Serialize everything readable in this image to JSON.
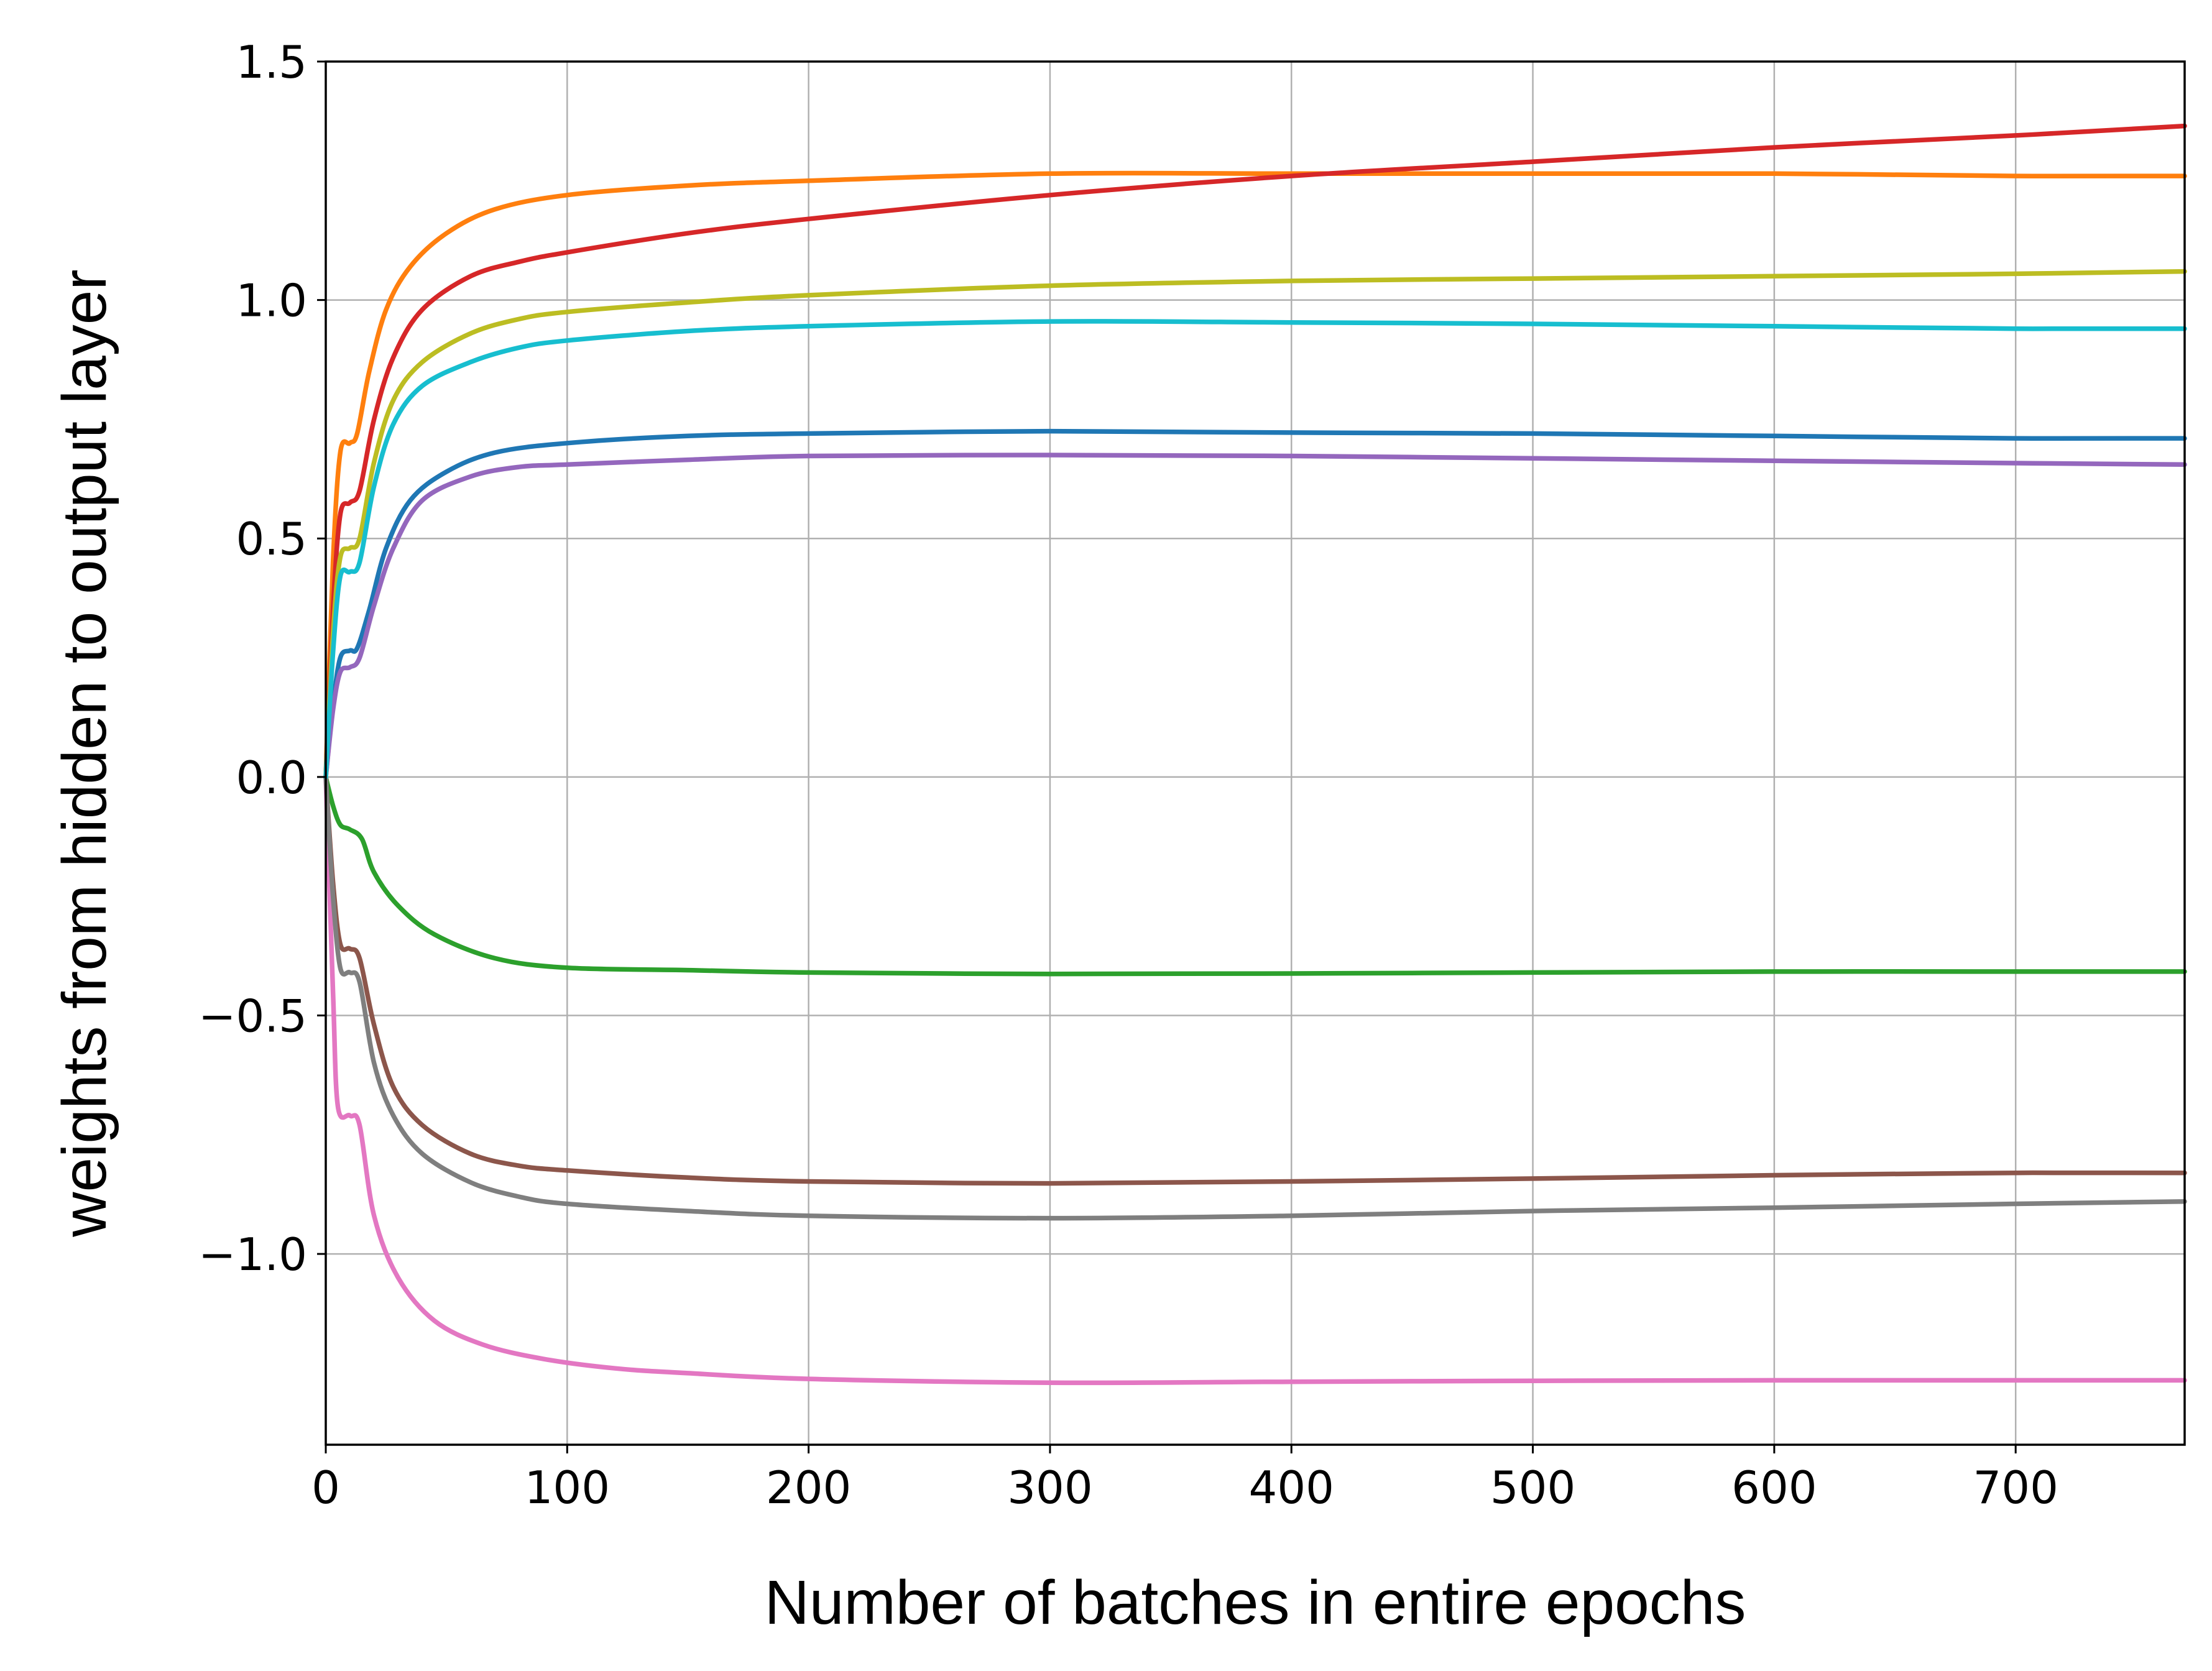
{
  "chart_data": {
    "type": "line",
    "title": "",
    "xlabel": "Number of batches in entire epochs",
    "ylabel": "weights from hidden to output layer",
    "xlim": [
      0,
      770
    ],
    "ylim": [
      -1.4,
      1.5
    ],
    "xticks": [
      0,
      100,
      200,
      300,
      400,
      500,
      600,
      700
    ],
    "yticks": [
      1.5,
      1.0,
      0.5,
      0.0,
      -0.5,
      -1.0
    ],
    "xtick_labels": [
      "0",
      "100",
      "200",
      "300",
      "400",
      "500",
      "600",
      "700"
    ],
    "ytick_labels": [
      "1.5",
      "1.0",
      "0.5",
      "0.0",
      "−0.5",
      "−1.0"
    ],
    "grid": true,
    "legend": "none",
    "series": [
      {
        "color": "#1f77b4",
        "points": [
          [
            0,
            0
          ],
          [
            3,
            0.15
          ],
          [
            6,
            0.25
          ],
          [
            10,
            0.265
          ],
          [
            13,
            0.27
          ],
          [
            18,
            0.35
          ],
          [
            25,
            0.48
          ],
          [
            35,
            0.58
          ],
          [
            50,
            0.64
          ],
          [
            70,
            0.68
          ],
          [
            100,
            0.7
          ],
          [
            150,
            0.715
          ],
          [
            200,
            0.72
          ],
          [
            300,
            0.725
          ],
          [
            400,
            0.722
          ],
          [
            500,
            0.72
          ],
          [
            600,
            0.715
          ],
          [
            700,
            0.71
          ],
          [
            770,
            0.71
          ]
        ]
      },
      {
        "color": "#ff7f0e",
        "points": [
          [
            0,
            0
          ],
          [
            3,
            0.45
          ],
          [
            6,
            0.68
          ],
          [
            10,
            0.7
          ],
          [
            13,
            0.72
          ],
          [
            18,
            0.85
          ],
          [
            25,
            0.98
          ],
          [
            35,
            1.07
          ],
          [
            50,
            1.14
          ],
          [
            70,
            1.19
          ],
          [
            100,
            1.22
          ],
          [
            150,
            1.24
          ],
          [
            200,
            1.25
          ],
          [
            300,
            1.265
          ],
          [
            400,
            1.265
          ],
          [
            500,
            1.265
          ],
          [
            600,
            1.265
          ],
          [
            700,
            1.26
          ],
          [
            770,
            1.26
          ]
        ]
      },
      {
        "color": "#2ca02c",
        "points": [
          [
            0,
            0
          ],
          [
            3,
            -0.06
          ],
          [
            6,
            -0.1
          ],
          [
            10,
            -0.11
          ],
          [
            15,
            -0.13
          ],
          [
            20,
            -0.2
          ],
          [
            30,
            -0.27
          ],
          [
            45,
            -0.33
          ],
          [
            70,
            -0.38
          ],
          [
            100,
            -0.4
          ],
          [
            150,
            -0.405
          ],
          [
            200,
            -0.41
          ],
          [
            300,
            -0.413
          ],
          [
            400,
            -0.412
          ],
          [
            500,
            -0.41
          ],
          [
            600,
            -0.408
          ],
          [
            700,
            -0.408
          ],
          [
            770,
            -0.408
          ]
        ]
      },
      {
        "color": "#d62728",
        "points": [
          [
            0,
            0
          ],
          [
            3,
            0.35
          ],
          [
            6,
            0.55
          ],
          [
            10,
            0.575
          ],
          [
            14,
            0.6
          ],
          [
            20,
            0.75
          ],
          [
            28,
            0.88
          ],
          [
            40,
            0.98
          ],
          [
            60,
            1.05
          ],
          [
            80,
            1.08
          ],
          [
            100,
            1.1
          ],
          [
            150,
            1.14
          ],
          [
            200,
            1.17
          ],
          [
            300,
            1.22
          ],
          [
            400,
            1.26
          ],
          [
            500,
            1.29
          ],
          [
            600,
            1.32
          ],
          [
            700,
            1.345
          ],
          [
            770,
            1.365
          ]
        ]
      },
      {
        "color": "#9467bd",
        "points": [
          [
            0,
            0
          ],
          [
            3,
            0.14
          ],
          [
            6,
            0.22
          ],
          [
            10,
            0.23
          ],
          [
            14,
            0.25
          ],
          [
            20,
            0.36
          ],
          [
            28,
            0.48
          ],
          [
            40,
            0.58
          ],
          [
            60,
            0.63
          ],
          [
            80,
            0.65
          ],
          [
            100,
            0.655
          ],
          [
            150,
            0.665
          ],
          [
            200,
            0.673
          ],
          [
            300,
            0.675
          ],
          [
            400,
            0.673
          ],
          [
            500,
            0.668
          ],
          [
            600,
            0.663
          ],
          [
            700,
            0.658
          ],
          [
            770,
            0.655
          ]
        ]
      },
      {
        "color": "#8c564b",
        "points": [
          [
            0,
            0
          ],
          [
            3,
            -0.22
          ],
          [
            6,
            -0.35
          ],
          [
            10,
            -0.36
          ],
          [
            14,
            -0.38
          ],
          [
            20,
            -0.52
          ],
          [
            28,
            -0.65
          ],
          [
            40,
            -0.73
          ],
          [
            60,
            -0.79
          ],
          [
            80,
            -0.815
          ],
          [
            100,
            -0.825
          ],
          [
            150,
            -0.84
          ],
          [
            200,
            -0.848
          ],
          [
            300,
            -0.852
          ],
          [
            400,
            -0.848
          ],
          [
            500,
            -0.842
          ],
          [
            600,
            -0.835
          ],
          [
            700,
            -0.83
          ],
          [
            770,
            -0.83
          ]
        ]
      },
      {
        "color": "#e377c2",
        "points": [
          [
            0,
            0
          ],
          [
            3,
            -0.45
          ],
          [
            5,
            -0.69
          ],
          [
            10,
            -0.71
          ],
          [
            14,
            -0.73
          ],
          [
            20,
            -0.92
          ],
          [
            30,
            -1.05
          ],
          [
            45,
            -1.14
          ],
          [
            65,
            -1.19
          ],
          [
            90,
            -1.22
          ],
          [
            120,
            -1.24
          ],
          [
            150,
            -1.25
          ],
          [
            200,
            -1.262
          ],
          [
            300,
            -1.27
          ],
          [
            400,
            -1.268
          ],
          [
            500,
            -1.266
          ],
          [
            600,
            -1.265
          ],
          [
            700,
            -1.265
          ],
          [
            770,
            -1.265
          ]
        ]
      },
      {
        "color": "#7f7f7f",
        "points": [
          [
            0,
            0
          ],
          [
            3,
            -0.25
          ],
          [
            6,
            -0.4
          ],
          [
            10,
            -0.41
          ],
          [
            14,
            -0.43
          ],
          [
            20,
            -0.6
          ],
          [
            28,
            -0.71
          ],
          [
            40,
            -0.79
          ],
          [
            60,
            -0.85
          ],
          [
            80,
            -0.88
          ],
          [
            100,
            -0.895
          ],
          [
            150,
            -0.91
          ],
          [
            200,
            -0.92
          ],
          [
            300,
            -0.925
          ],
          [
            400,
            -0.92
          ],
          [
            500,
            -0.91
          ],
          [
            600,
            -0.903
          ],
          [
            700,
            -0.895
          ],
          [
            770,
            -0.89
          ]
        ]
      },
      {
        "color": "#bcbd22",
        "points": [
          [
            0,
            0
          ],
          [
            3,
            0.3
          ],
          [
            6,
            0.46
          ],
          [
            10,
            0.48
          ],
          [
            14,
            0.5
          ],
          [
            20,
            0.66
          ],
          [
            28,
            0.79
          ],
          [
            40,
            0.87
          ],
          [
            60,
            0.93
          ],
          [
            80,
            0.96
          ],
          [
            100,
            0.975
          ],
          [
            150,
            0.995
          ],
          [
            200,
            1.01
          ],
          [
            300,
            1.03
          ],
          [
            400,
            1.04
          ],
          [
            500,
            1.045
          ],
          [
            600,
            1.05
          ],
          [
            700,
            1.055
          ],
          [
            770,
            1.06
          ]
        ]
      },
      {
        "color": "#17becf",
        "points": [
          [
            0,
            0
          ],
          [
            3,
            0.26
          ],
          [
            6,
            0.42
          ],
          [
            10,
            0.43
          ],
          [
            14,
            0.45
          ],
          [
            20,
            0.61
          ],
          [
            28,
            0.74
          ],
          [
            40,
            0.82
          ],
          [
            60,
            0.87
          ],
          [
            80,
            0.9
          ],
          [
            100,
            0.915
          ],
          [
            150,
            0.935
          ],
          [
            200,
            0.945
          ],
          [
            300,
            0.955
          ],
          [
            400,
            0.953
          ],
          [
            500,
            0.95
          ],
          [
            600,
            0.945
          ],
          [
            700,
            0.94
          ],
          [
            770,
            0.94
          ]
        ]
      }
    ]
  }
}
